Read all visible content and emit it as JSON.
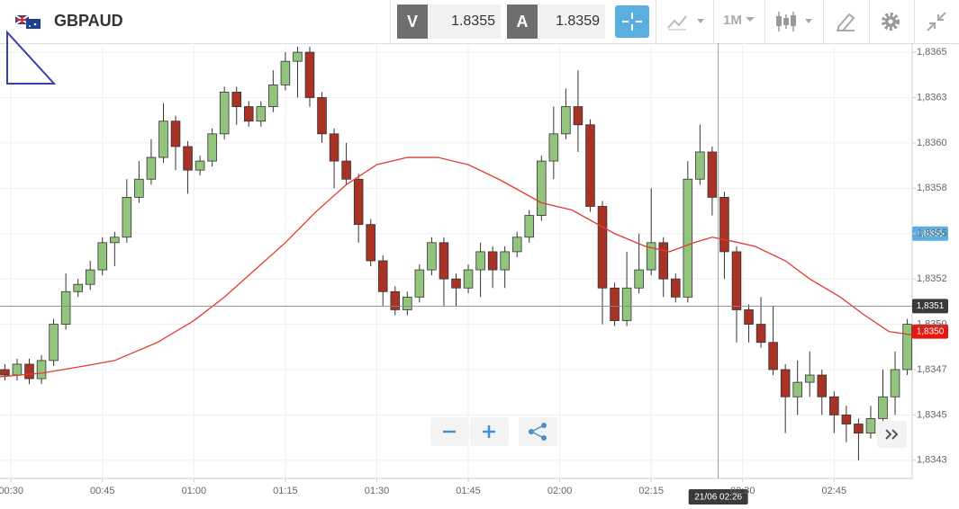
{
  "header": {
    "symbol": "GBPAUD",
    "bid_label": "V",
    "bid": 1.8355,
    "ask_label": "A",
    "ask": 1.8359,
    "interval": "1M"
  },
  "chart_data": {
    "type": "candlestick",
    "grid": true,
    "xlim": [
      -1.8,
      147.8
    ],
    "ylim": [
      1.83415,
      1.83655
    ],
    "xticks": [
      {
        "value": 0,
        "label": "00:30"
      },
      {
        "value": 15,
        "label": "00:45"
      },
      {
        "value": 30,
        "label": "01:00"
      },
      {
        "value": 45,
        "label": "01:15"
      },
      {
        "value": 60,
        "label": "01:30"
      },
      {
        "value": 75,
        "label": "01:45"
      },
      {
        "value": 90,
        "label": "02:00"
      },
      {
        "value": 105,
        "label": "02:15"
      },
      {
        "value": 120,
        "label": "02:30"
      },
      {
        "value": 135,
        "label": "02:45"
      }
    ],
    "yticks": [
      {
        "value": 1.8365,
        "label": "1,8365"
      },
      {
        "value": 1.83625,
        "label": "1,8363"
      },
      {
        "value": 1.836,
        "label": "1,8360"
      },
      {
        "value": 1.83575,
        "label": "1,8358"
      },
      {
        "value": 1.8355,
        "label": "1,8355"
      },
      {
        "value": 1.83525,
        "label": "1,8352"
      },
      {
        "value": 1.835,
        "label": "1,8350"
      },
      {
        "value": 1.83475,
        "label": "1,8347"
      },
      {
        "value": 1.8345,
        "label": "1,8345"
      },
      {
        "value": 1.83425,
        "label": "1,8343"
      }
    ],
    "up_color": "#93c47d",
    "down_color": "#a93226",
    "x": [
      -1,
      1,
      3,
      5,
      7,
      9,
      11,
      13,
      15,
      17,
      19,
      21,
      23,
      25,
      27,
      29,
      31,
      33,
      35,
      37,
      39,
      41,
      43,
      45,
      47,
      49,
      51,
      53,
      55,
      57,
      59,
      61,
      63,
      65,
      67,
      69,
      71,
      73,
      75,
      77,
      79,
      81,
      83,
      85,
      87,
      89,
      91,
      93,
      95,
      97,
      99,
      101,
      103,
      105,
      107,
      109,
      111,
      113,
      115,
      117,
      119,
      121,
      123,
      125,
      127,
      129,
      131,
      133,
      135,
      137,
      139,
      141,
      143,
      145,
      147
    ],
    "open": [
      1.83475,
      1.83472,
      1.83478,
      1.8347,
      1.8348,
      1.835,
      1.83518,
      1.83522,
      1.8353,
      1.83545,
      1.83548,
      1.8357,
      1.8358,
      1.83592,
      1.83612,
      1.83598,
      1.83585,
      1.8359,
      1.83605,
      1.83628,
      1.8362,
      1.83612,
      1.8362,
      1.83632,
      1.83645,
      1.8365,
      1.83625,
      1.83605,
      1.8359,
      1.8358,
      1.83555,
      1.83535,
      1.83518,
      1.83508,
      1.83515,
      1.8353,
      1.83545,
      1.83525,
      1.8352,
      1.8353,
      1.8354,
      1.8353,
      1.8354,
      1.83548,
      1.8356,
      1.8359,
      1.83605,
      1.8362,
      1.8361,
      1.83565,
      1.8352,
      1.83502,
      1.8352,
      1.8353,
      1.83545,
      1.83525,
      1.83515,
      1.8358,
      1.83595,
      1.8357,
      1.8354,
      1.83508,
      1.835,
      1.8349,
      1.83475,
      1.8346,
      1.83468,
      1.83472,
      1.8346,
      1.8345,
      1.83445,
      1.8344,
      1.83448,
      1.8346,
      1.83475
    ],
    "high": [
      1.83478,
      1.83481,
      1.83481,
      1.83483,
      1.83503,
      1.83528,
      1.83525,
      1.83535,
      1.83548,
      1.83551,
      1.8358,
      1.8359,
      1.83602,
      1.83622,
      1.83615,
      1.83601,
      1.83593,
      1.83608,
      1.83631,
      1.83631,
      1.83623,
      1.83623,
      1.8364,
      1.8365,
      1.83653,
      1.83653,
      1.83628,
      1.83608,
      1.836,
      1.83583,
      1.83558,
      1.83538,
      1.83521,
      1.83518,
      1.83533,
      1.83548,
      1.83548,
      1.83528,
      1.83533,
      1.83545,
      1.83543,
      1.83543,
      1.83551,
      1.83563,
      1.83593,
      1.8362,
      1.8363,
      1.8364,
      1.83613,
      1.83568,
      1.83523,
      1.8354,
      1.8355,
      1.83575,
      1.83548,
      1.83528,
      1.8359,
      1.8361,
      1.83598,
      1.83573,
      1.83543,
      1.83511,
      1.83515,
      1.8351,
      1.83478,
      1.8348,
      1.83485,
      1.83475,
      1.83463,
      1.83455,
      1.83448,
      1.83455,
      1.83475,
      1.83485,
      1.83503
    ],
    "low": [
      1.83469,
      1.83469,
      1.83467,
      1.83467,
      1.83477,
      1.83497,
      1.83515,
      1.83519,
      1.83527,
      1.83532,
      1.83545,
      1.83567,
      1.83577,
      1.83589,
      1.83585,
      1.83572,
      1.83582,
      1.83587,
      1.83602,
      1.8361,
      1.83609,
      1.83609,
      1.83617,
      1.83629,
      1.83625,
      1.8362,
      1.836,
      1.83575,
      1.83577,
      1.83545,
      1.83532,
      1.8351,
      1.83505,
      1.83505,
      1.83512,
      1.83527,
      1.8351,
      1.8351,
      1.83517,
      1.83515,
      1.8352,
      1.8352,
      1.83537,
      1.83545,
      1.83557,
      1.8358,
      1.83602,
      1.83595,
      1.83562,
      1.835,
      1.83499,
      1.83499,
      1.83517,
      1.83527,
      1.83515,
      1.83512,
      1.83512,
      1.83577,
      1.8356,
      1.83525,
      1.8349,
      1.8349,
      1.83487,
      1.83472,
      1.8344,
      1.8345,
      1.8346,
      1.8345,
      1.8344,
      1.83435,
      1.83425,
      1.83437,
      1.83445,
      1.8345,
      1.83472
    ],
    "close": [
      1.83472,
      1.83478,
      1.8347,
      1.8348,
      1.835,
      1.83518,
      1.83522,
      1.8353,
      1.83545,
      1.83548,
      1.8357,
      1.8358,
      1.83592,
      1.83612,
      1.83598,
      1.83585,
      1.8359,
      1.83605,
      1.83628,
      1.8362,
      1.83612,
      1.8362,
      1.83632,
      1.83645,
      1.8365,
      1.83625,
      1.83605,
      1.8359,
      1.8358,
      1.83555,
      1.83535,
      1.83518,
      1.83508,
      1.83515,
      1.8353,
      1.83545,
      1.83525,
      1.8352,
      1.8353,
      1.8354,
      1.8353,
      1.8354,
      1.83548,
      1.8356,
      1.8359,
      1.83605,
      1.8362,
      1.8361,
      1.83565,
      1.8352,
      1.83502,
      1.8352,
      1.8353,
      1.83545,
      1.83525,
      1.83515,
      1.8358,
      1.83595,
      1.8357,
      1.8354,
      1.83508,
      1.835,
      1.8349,
      1.83475,
      1.8346,
      1.83468,
      1.83472,
      1.8346,
      1.8345,
      1.83445,
      1.8344,
      1.83448,
      1.8346,
      1.83475,
      1.835
    ],
    "line": {
      "color": "#e03c31",
      "x": [
        -2,
        5,
        12,
        17,
        24,
        30,
        35,
        40,
        45,
        50,
        55,
        60,
        65,
        70,
        75,
        80,
        87,
        92,
        99,
        104,
        108,
        112,
        115,
        118,
        122,
        127,
        131,
        136,
        140,
        144,
        148
      ],
      "values": [
        1.83471,
        1.83473,
        1.83477,
        1.8348,
        1.8349,
        1.83502,
        1.83515,
        1.8353,
        1.83545,
        1.83562,
        1.83577,
        1.83588,
        1.83592,
        1.83592,
        1.83588,
        1.8358,
        1.83567,
        1.83563,
        1.8355,
        1.83543,
        1.8354,
        1.83545,
        1.83548,
        1.83546,
        1.83543,
        1.83535,
        1.83525,
        1.83515,
        1.83505,
        1.83496,
        1.83494
      ]
    },
    "price_tags": [
      {
        "value": 1.8355,
        "label": "1,8355",
        "color": "#5aaee0"
      },
      {
        "value": 1.83496,
        "label": "1,8350",
        "color": "#e8170d"
      }
    ],
    "crosshair": {
      "x": {
        "value": 116,
        "label": "21/06 02:26"
      },
      "y": {
        "value": 1.8351,
        "label": "1,8351"
      },
      "color": "#3a3a3a"
    }
  }
}
